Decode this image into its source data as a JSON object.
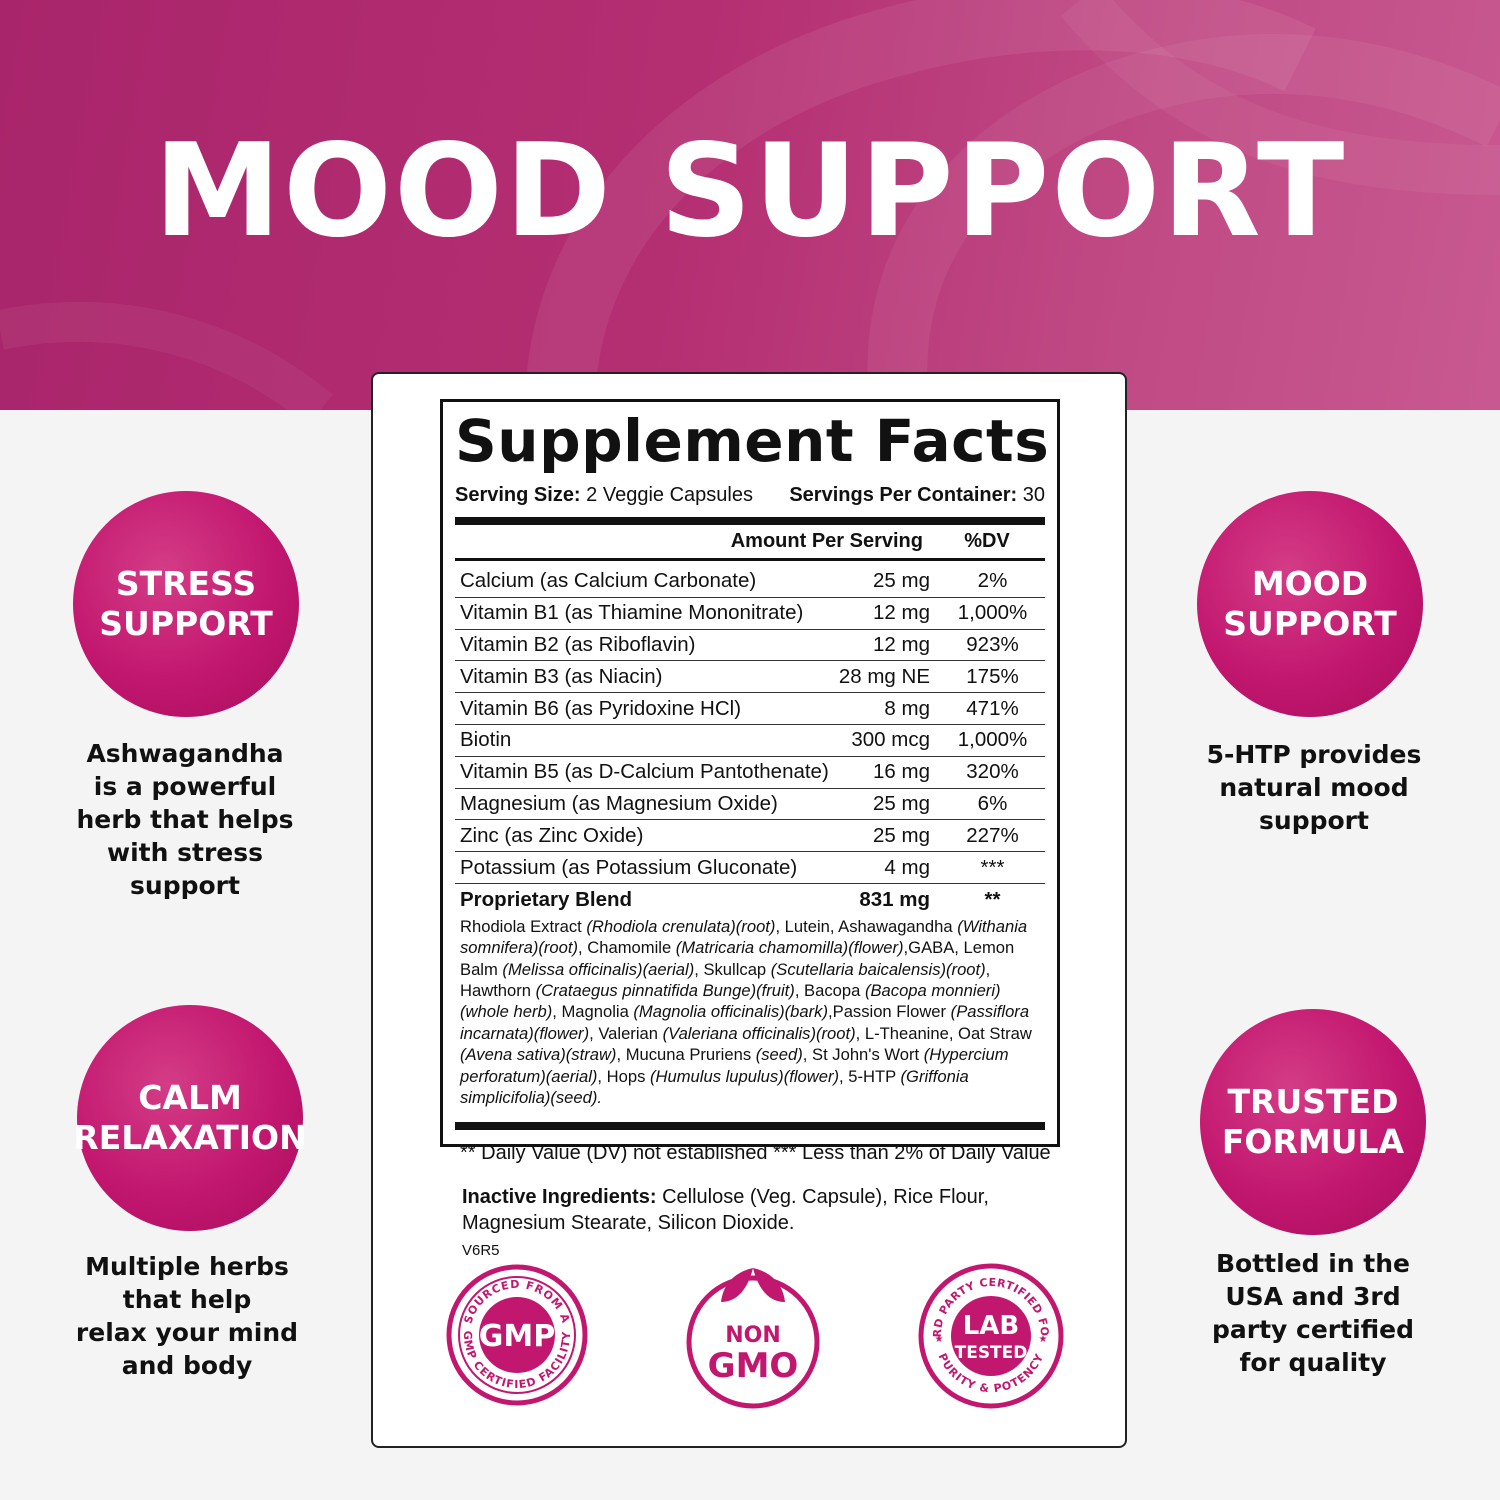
{
  "header": {
    "title": "MOOD SUPPORT"
  },
  "features": {
    "stress": {
      "line1": "STRESS",
      "line2": "SUPPORT",
      "text": [
        "Ashwagandha",
        "is a powerful",
        "herb that helps",
        "with stress",
        "support"
      ]
    },
    "calm": {
      "line1": "CALM",
      "line2": "RELAXATION",
      "text": [
        "Multiple herbs",
        "that help",
        "relax your mind",
        "and body"
      ]
    },
    "mood": {
      "line1": "MOOD",
      "line2": "SUPPORT",
      "text": [
        "5-HTP provides",
        "natural mood",
        "support"
      ]
    },
    "trusted": {
      "line1": "TRUSTED",
      "line2": "FORMULA",
      "text": [
        "Bottled in the",
        "USA and 3rd",
        "party certified",
        "for quality"
      ]
    }
  },
  "facts": {
    "title": "Supplement Facts",
    "serving_size_label": "Serving Size:",
    "serving_size_value": "2 Veggie Capsules",
    "servings_per_label": "Servings Per Container:",
    "servings_per_value": "30",
    "col_amount": "Amount Per Serving",
    "col_dv": "%DV",
    "rows": [
      {
        "name": "Calcium (as Calcium Carbonate)",
        "amount": "25 mg",
        "dv": "2%"
      },
      {
        "name": "Vitamin B1 (as Thiamine Mononitrate)",
        "amount": "12 mg",
        "dv": "1,000%"
      },
      {
        "name": "Vitamin B2 (as Riboflavin)",
        "amount": "12 mg",
        "dv": "923%"
      },
      {
        "name": "Vitamin B3 (as Niacin)",
        "amount": "28 mg NE",
        "dv": "175%"
      },
      {
        "name": "Vitamin B6 (as Pyridoxine HCl)",
        "amount": "8 mg",
        "dv": "471%"
      },
      {
        "name": "Biotin",
        "amount": "300 mcg",
        "dv": "1,000%"
      },
      {
        "name": "Vitamin B5 (as D-Calcium Pantothenate)",
        "amount": "16 mg",
        "dv": "320%"
      },
      {
        "name": "Magnesium (as Magnesium Oxide)",
        "amount": "25 mg",
        "dv": "6%"
      },
      {
        "name": "Zinc (as Zinc Oxide)",
        "amount": "25 mg",
        "dv": "227%"
      },
      {
        "name": "Potassium (as Potassium Gluconate)",
        "amount": "4 mg",
        "dv": "***"
      }
    ],
    "blend": {
      "name": "Proprietary Blend",
      "amount": "831 mg",
      "dv": "**"
    },
    "blend_desc": [
      [
        "Rhodiola Extract ",
        "(Rhodiola crenulata)(root)",
        ", Lutein, Ashawagandha "
      ],
      [
        "",
        "(Withania somnifera)(root)",
        ", Chamomile "
      ],
      [
        "",
        "(Matricaria chamomilla)(flower)",
        ","
      ],
      [
        "GABA, Lemon Balm ",
        "(Melissa officinalis)(aerial)",
        ", Skullcap "
      ],
      [
        "",
        "(Scutellaria baicalensis)(root)",
        ", Hawthorn "
      ],
      [
        "",
        "(Crataegus pinnatifida Bunge)(fruit)",
        ", Bacopa "
      ],
      [
        "",
        "(Bacopa monnieri)(whole herb)",
        ", Magnolia "
      ],
      [
        "",
        "(Magnolia officinalis)(bark)",
        ","
      ],
      [
        "Passion Flower ",
        "(Passiflora incarnata)(flower)",
        ", Valerian "
      ],
      [
        "",
        "(Valeriana officinalis)(root)",
        ", L-Theanine, Oat Straw "
      ],
      [
        "",
        "(Avena sativa)(straw)",
        ", Mucuna Pruriens "
      ],
      [
        "",
        "(seed)",
        ", St John's Wort "
      ],
      [
        "",
        "(Hypercium perforatum)(aerial)",
        ", Hops "
      ],
      [
        "",
        "(Humulus lupulus)(flower)",
        ", 5-HTP "
      ],
      [
        "",
        "(Griffonia simplicifolia)(seed).",
        ""
      ]
    ],
    "footnote": "** Daily Value (DV) not established *** Less than 2% of Daily Value"
  },
  "inactive": {
    "label": "Inactive Ingredients:",
    "text": "Cellulose (Veg. Capsule), Rice Flour, Magnesium Stearate, Silicon Dioxide."
  },
  "version": "V6R5",
  "badges": {
    "gmp": {
      "center": "GMP",
      "top_arc": "SOURCED FROM A",
      "bottom_arc": "GMP CERTIFIED FACILITY"
    },
    "nongmo": {
      "line1": "NON",
      "line2": "GMO"
    },
    "lab": {
      "line1": "LAB",
      "line2": "TESTED",
      "top_arc": "3RD PARTY CERTIFIED FOR",
      "bottom_arc": "PURITY & POTENCY"
    }
  },
  "colors": {
    "brand": "#c2176f",
    "header": "#b42e72"
  }
}
